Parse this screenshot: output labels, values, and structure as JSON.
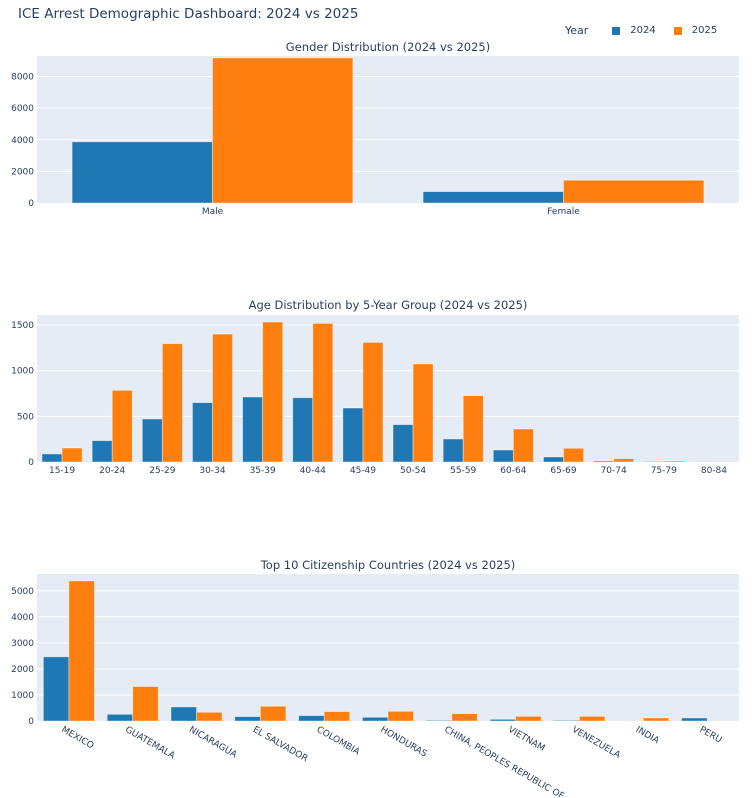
{
  "title": "ICE Arrest Demographic Dashboard: 2024 vs 2025",
  "legend": {
    "title": "Year",
    "items": [
      {
        "label": "2024",
        "color": "#1f77b4"
      },
      {
        "label": "2025",
        "color": "#ff7f0e"
      }
    ]
  },
  "colors": {
    "plot_bg": "#e5ecf6",
    "grid": "#ffffff",
    "series_2024": "#1f77b4",
    "series_2025": "#ff7f0e"
  },
  "chart_data": [
    {
      "type": "bar",
      "title": "Gender Distribution (2024 vs 2025)",
      "categories": [
        "Male",
        "Female"
      ],
      "series": [
        {
          "name": "2024",
          "values": [
            3870,
            720
          ]
        },
        {
          "name": "2025",
          "values": [
            9180,
            1440
          ]
        }
      ],
      "ylim": [
        0,
        9300
      ],
      "yticks": [
        0,
        2000,
        4000,
        6000,
        8000
      ],
      "xlabel": "",
      "ylabel": "",
      "grid": true,
      "legend": "top-right"
    },
    {
      "type": "bar",
      "title": "Age Distribution by 5-Year Group (2024 vs 2025)",
      "categories": [
        "15-19",
        "20-24",
        "25-29",
        "30-34",
        "35-39",
        "40-44",
        "45-49",
        "50-54",
        "55-59",
        "60-64",
        "65-69",
        "70-74",
        "75-79",
        "80-84"
      ],
      "series": [
        {
          "name": "2024",
          "values": [
            88,
            234,
            471,
            650,
            712,
            704,
            591,
            409,
            252,
            131,
            55,
            11,
            4,
            1
          ]
        },
        {
          "name": "2025",
          "values": [
            153,
            785,
            1296,
            1401,
            1533,
            1518,
            1310,
            1073,
            726,
            361,
            150,
            36,
            11,
            2
          ]
        }
      ],
      "ylim": [
        0,
        1610
      ],
      "yticks": [
        0,
        500,
        1000,
        1500
      ],
      "xlabel": "",
      "ylabel": "",
      "grid": true
    },
    {
      "type": "bar",
      "title": "Top 10 Citizenship Countries (2024 vs 2025)",
      "categories": [
        "MEXICO",
        "GUATEMALA",
        "NICARAGUA",
        "EL SALVADOR",
        "COLOMBIA",
        "HONDURAS",
        "CHINA, PEOPLES REPUBLIC OF",
        "VIETNAM",
        "VENEZUELA",
        "INDIA",
        "PERU"
      ],
      "series": [
        {
          "name": "2024",
          "values": [
            2468,
            257,
            540,
            167,
            206,
            141,
            26,
            64,
            26,
            0,
            116
          ]
        },
        {
          "name": "2025",
          "values": [
            5385,
            1324,
            334,
            566,
            360,
            373,
            283,
            180,
            180,
            116,
            0
          ]
        }
      ],
      "ylim": [
        0,
        5650
      ],
      "yticks": [
        0,
        1000,
        2000,
        3000,
        4000,
        5000
      ],
      "xlabel": "",
      "ylabel": "",
      "grid": true,
      "xtick_rotation": "angled"
    }
  ]
}
